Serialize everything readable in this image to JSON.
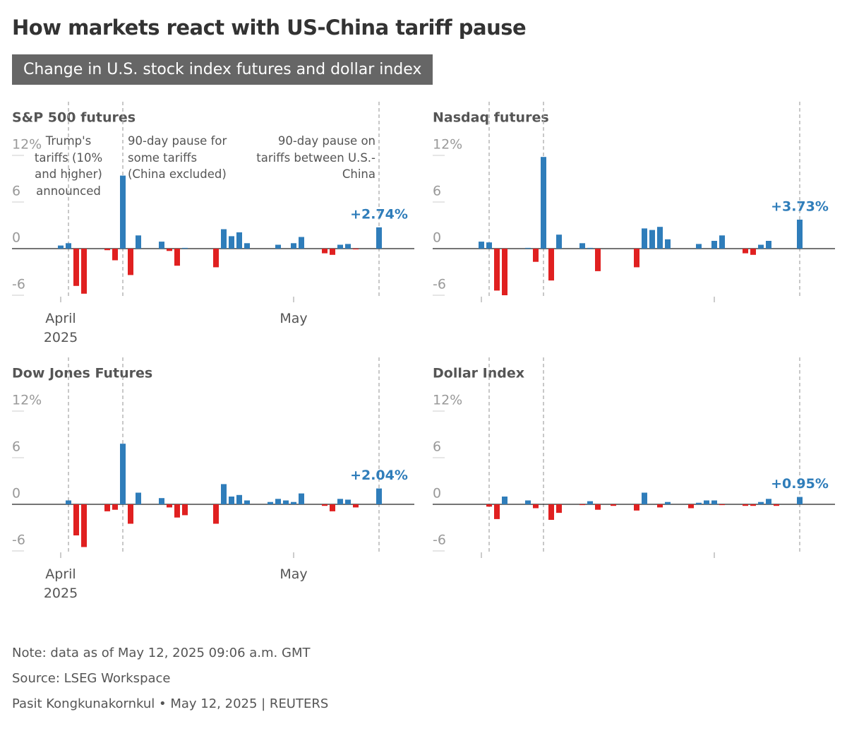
{
  "title": "How markets react with US-China tariff pause",
  "subtitle": "Change in U.S. stock index futures and dollar index",
  "chart_data": [
    {
      "type": "bar",
      "title": "S&P 500 futures",
      "categories": [
        "April 2025",
        null,
        null,
        null,
        null,
        null,
        null,
        null,
        null,
        null,
        null,
        null,
        null,
        null,
        null,
        null,
        null,
        null,
        null,
        null,
        null,
        null,
        null,
        null,
        null,
        null,
        null,
        null,
        null,
        null,
        "May",
        null,
        null,
        null,
        null,
        null,
        null,
        null,
        null,
        null,
        null,
        null
      ],
      "values": [
        0.4,
        0.7,
        -4.8,
        -5.8,
        null,
        null,
        -0.2,
        -1.5,
        9.4,
        -3.4,
        1.7,
        null,
        null,
        0.9,
        -0.3,
        -2.2,
        0.1,
        null,
        null,
        null,
        -2.4,
        2.5,
        1.6,
        2.1,
        0.7,
        null,
        null,
        null,
        0.5,
        null,
        0.7,
        1.5,
        null,
        null,
        -0.6,
        -0.8,
        0.5,
        0.6,
        -0.1,
        null,
        null,
        2.74
      ],
      "value_labels": [
        null,
        null,
        null,
        null,
        null,
        null,
        null,
        null,
        null,
        null,
        null,
        null,
        null,
        null,
        null,
        null,
        null,
        null,
        null,
        null,
        null,
        null,
        null,
        null,
        null,
        null,
        null,
        null,
        null,
        null,
        null,
        null,
        null,
        null,
        null,
        null,
        null,
        null,
        null,
        null,
        null,
        "+2.74%"
      ],
      "ylim": [
        -6,
        12
      ],
      "yticks": [
        {
          "value": 12,
          "label": "12%"
        },
        6,
        0,
        -6
      ],
      "positive_color": "#2f7dba",
      "negative_color": "#e02020",
      "event_lines": [
        1,
        8,
        41
      ],
      "annotations": [
        "Trump's tariffs (10% and higher) announced",
        "90-day pause for some tariffs (China excluded)",
        "90-day pause on tariffs between U.S.-China"
      ]
    },
    {
      "type": "bar",
      "title": "Nasdaq futures",
      "categories": [
        null,
        null,
        null,
        null,
        null,
        null,
        null,
        null,
        null,
        null,
        null,
        null,
        null,
        null,
        null,
        null,
        null,
        null,
        null,
        null,
        null,
        null,
        null,
        null,
        null,
        null,
        null,
        null,
        null,
        null,
        null,
        null,
        null,
        null,
        null,
        null,
        null,
        null,
        null,
        null,
        null,
        null
      ],
      "values": [
        0.9,
        0.8,
        -5.4,
        -6.0,
        null,
        null,
        0.1,
        -1.7,
        11.8,
        -4.1,
        1.8,
        null,
        null,
        0.7,
        0.1,
        -2.9,
        null,
        null,
        null,
        null,
        -2.4,
        2.6,
        2.4,
        2.8,
        1.2,
        null,
        null,
        null,
        0.6,
        null,
        1.0,
        1.7,
        null,
        null,
        -0.6,
        -0.8,
        0.5,
        1.0,
        null,
        null,
        null,
        3.73
      ],
      "value_labels": [
        null,
        null,
        null,
        null,
        null,
        null,
        null,
        null,
        null,
        null,
        null,
        null,
        null,
        null,
        null,
        null,
        null,
        null,
        null,
        null,
        null,
        null,
        null,
        null,
        null,
        null,
        null,
        null,
        null,
        null,
        null,
        null,
        null,
        null,
        null,
        null,
        null,
        null,
        null,
        null,
        null,
        "+3.73%"
      ],
      "ylim": [
        -6,
        12
      ],
      "yticks": [
        {
          "value": 12,
          "label": "12%"
        },
        6,
        0,
        -6
      ],
      "positive_color": "#2f7dba",
      "negative_color": "#e02020",
      "event_lines": [
        1,
        8,
        41
      ]
    },
    {
      "type": "bar",
      "title": "Dow Jones Futures",
      "categories": [
        "April 2025",
        null,
        null,
        null,
        null,
        null,
        null,
        null,
        null,
        null,
        null,
        null,
        null,
        null,
        null,
        null,
        null,
        null,
        null,
        null,
        null,
        null,
        null,
        null,
        null,
        null,
        null,
        null,
        null,
        null,
        "May",
        null,
        null,
        null,
        null,
        null,
        null,
        null,
        null,
        null,
        null,
        null
      ],
      "values": [
        null,
        0.5,
        -4.0,
        -5.5,
        null,
        null,
        -0.9,
        -0.7,
        7.8,
        -2.5,
        1.5,
        null,
        null,
        0.8,
        -0.4,
        -1.7,
        -1.4,
        null,
        null,
        null,
        -2.5,
        2.6,
        1.0,
        1.2,
        0.5,
        null,
        null,
        0.3,
        0.7,
        0.5,
        0.3,
        1.4,
        null,
        null,
        -0.2,
        -0.9,
        0.7,
        0.6,
        -0.4,
        null,
        null,
        2.04
      ],
      "value_labels": [
        null,
        null,
        null,
        null,
        null,
        null,
        null,
        null,
        null,
        null,
        null,
        null,
        null,
        null,
        null,
        null,
        null,
        null,
        null,
        null,
        null,
        null,
        null,
        null,
        null,
        null,
        null,
        null,
        null,
        null,
        null,
        null,
        null,
        null,
        null,
        null,
        null,
        null,
        null,
        null,
        null,
        "+2.04%"
      ],
      "ylim": [
        -6,
        12
      ],
      "yticks": [
        {
          "value": 12,
          "label": "12%"
        },
        6,
        0,
        -6
      ],
      "positive_color": "#2f7dba",
      "negative_color": "#e02020",
      "event_lines": [
        1,
        8,
        41
      ]
    },
    {
      "type": "bar",
      "title": "Dollar Index",
      "categories": [
        null,
        null,
        null,
        null,
        null,
        null,
        null,
        null,
        null,
        null,
        null,
        null,
        null,
        null,
        null,
        null,
        null,
        null,
        null,
        null,
        null,
        null,
        null,
        null,
        null,
        null,
        null,
        null,
        null,
        null,
        null,
        null,
        null,
        null,
        null,
        null,
        null,
        null,
        null,
        null,
        null,
        null
      ],
      "values": [
        null,
        -0.3,
        -1.9,
        1.0,
        null,
        null,
        0.5,
        -0.5,
        null,
        -2.0,
        -1.1,
        null,
        null,
        -0.1,
        0.4,
        -0.7,
        null,
        -0.2,
        null,
        null,
        -0.8,
        1.5,
        null,
        -0.4,
        0.3,
        null,
        null,
        -0.5,
        0.2,
        0.5,
        0.5,
        -0.1,
        null,
        null,
        -0.2,
        -0.2,
        0.3,
        0.7,
        -0.2,
        null,
        null,
        0.95
      ],
      "value_labels": [
        null,
        null,
        null,
        null,
        null,
        null,
        null,
        null,
        null,
        null,
        null,
        null,
        null,
        null,
        null,
        null,
        null,
        null,
        null,
        null,
        null,
        null,
        null,
        null,
        null,
        null,
        null,
        null,
        null,
        null,
        null,
        null,
        null,
        null,
        null,
        null,
        null,
        null,
        null,
        null,
        null,
        "+0.95%"
      ],
      "ylim": [
        -6,
        12
      ],
      "yticks": [
        {
          "value": 12,
          "label": "12%"
        },
        6,
        0,
        -6
      ],
      "positive_color": "#2f7dba",
      "negative_color": "#e02020",
      "event_lines": [
        1,
        8,
        41
      ]
    }
  ],
  "footer": {
    "note": "Note: data as of May 12, 2025 09:06 a.m. GMT",
    "source": "Source: LSEG Workspace",
    "credit": "Pasit Kongkunakornkul • May 12, 2025 | REUTERS"
  }
}
